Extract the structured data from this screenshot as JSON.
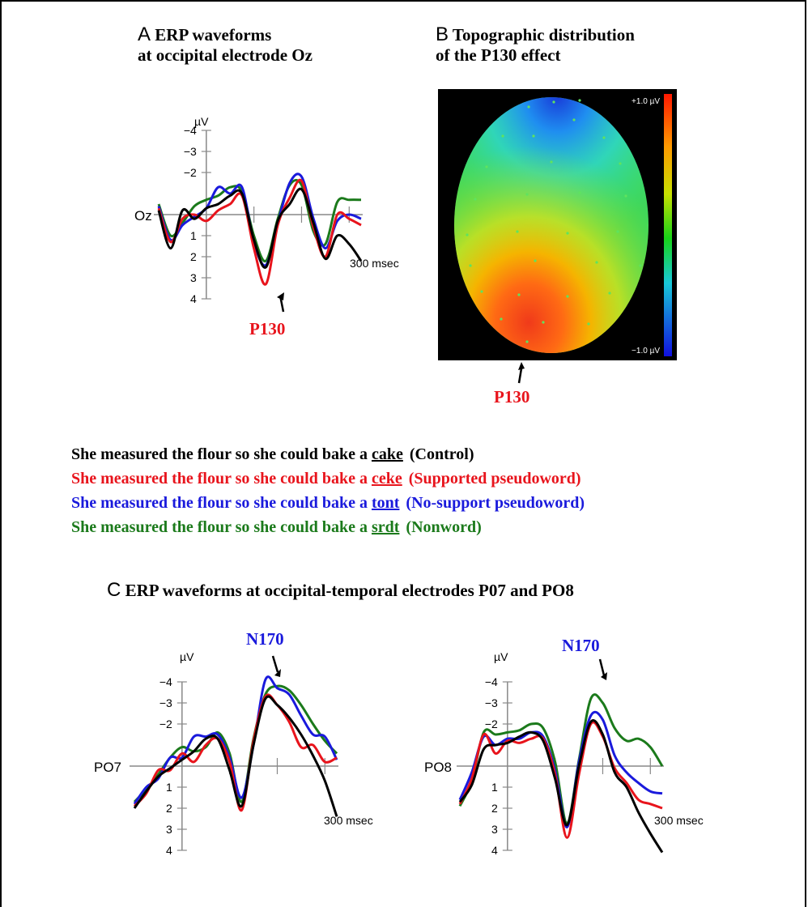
{
  "panel_a": {
    "letter": "A",
    "title_line1": "ERP waveforms",
    "title_line2": "at occipital electrode Oz",
    "electrode": "Oz",
    "unit": "µV",
    "y_ticks": [
      "−4",
      "−3",
      "−2",
      "1",
      "2",
      "3",
      "4"
    ],
    "time_label": "300 msec",
    "peak": "P130",
    "peak_color": "#e8141c"
  },
  "panel_b": {
    "letter": "B",
    "title_line1": "Topographic distribution",
    "title_line2": "of the P130 effect",
    "scale_max": "+1.0 µV",
    "scale_min": "−1.0 µV",
    "peak": "P130",
    "peak_color": "#e8141c"
  },
  "conditions": [
    {
      "prefix": "She measured the flour so she could bake a",
      "target": "cake",
      "label": "(Control)",
      "color": "#000000"
    },
    {
      "prefix": "She measured the flour so she could bake a",
      "target": "ceke",
      "label": "(Supported pseudoword)",
      "color": "#e8141c"
    },
    {
      "prefix": "She measured the flour so she could bake a",
      "target": "tont",
      "label": "(No-support pseudoword)",
      "color": "#1a1adc"
    },
    {
      "prefix": "She measured the flour so she could bake a",
      "target": "srdt",
      "label": "(Nonword)",
      "color": "#1b7a1b"
    }
  ],
  "panel_c": {
    "letter": "C",
    "title": "ERP waveforms at occipital-temporal electrodes P07 and PO8",
    "unit": "µV",
    "y_ticks": [
      "−4",
      "−3",
      "−2",
      "1",
      "2",
      "3",
      "4"
    ],
    "left_electrode": "PO7",
    "right_electrode": "PO8",
    "left_time_label": "300 msec",
    "right_time_label": "300 msec",
    "peak": "N170",
    "peak_color": "#1a1adc"
  },
  "colors": {
    "control": "#000000",
    "supported": "#e8141c",
    "nosupport": "#1a1adc",
    "nonword": "#1b7a1b"
  },
  "chart_data": [
    {
      "type": "line",
      "title": "",
      "xlabel": "",
      "ylabel": "µV",
      "ylim": [
        4,
        -4
      ],
      "x": [
        -100,
        -75,
        -50,
        -25,
        0,
        25,
        50,
        75,
        100,
        125,
        150,
        175,
        200,
        225,
        250,
        275,
        300,
        325
      ],
      "series": [
        {
          "name": "Control",
          "values": [
            -0.2,
            1.6,
            -0.2,
            0.2,
            -0.3,
            -0.5,
            -0.9,
            -1.0,
            1.2,
            2.5,
            0.3,
            -0.5,
            -1.2,
            0.4,
            2.1,
            1.0,
            1.4,
            2.2
          ]
        },
        {
          "name": "Supported pseudoword",
          "values": [
            -0.3,
            1.3,
            0.2,
            0.0,
            0.3,
            -0.2,
            -0.5,
            -0.9,
            1.6,
            3.3,
            0.5,
            -0.8,
            -1.6,
            0.6,
            2.0,
            0.0,
            0.2,
            0.5
          ]
        },
        {
          "name": "No-support pseudoword",
          "values": [
            -0.4,
            1.2,
            0.5,
            0.1,
            -0.3,
            -1.3,
            -1.0,
            -1.3,
            1.3,
            2.4,
            0.4,
            -1.5,
            -1.8,
            0.2,
            1.6,
            0.3,
            0.0,
            0.2
          ]
        },
        {
          "name": "Nonword",
          "values": [
            -0.5,
            1.0,
            0.4,
            -0.4,
            -0.7,
            -0.9,
            -1.3,
            -1.1,
            1.0,
            2.2,
            0.2,
            -1.4,
            -1.4,
            0.8,
            1.4,
            -0.6,
            -0.7,
            -0.7
          ]
        }
      ]
    },
    {
      "type": "line",
      "title": "",
      "xlabel": "",
      "ylabel": "µV",
      "ylim": [
        4,
        -4
      ],
      "x": [
        -100,
        -75,
        -50,
        -25,
        0,
        25,
        50,
        75,
        100,
        125,
        150,
        175,
        200,
        225,
        250,
        275,
        300,
        325
      ],
      "series": [
        {
          "name": "Control",
          "values": [
            2.0,
            1.2,
            0.5,
            0.1,
            -0.3,
            -0.7,
            -1.3,
            -1.3,
            0.2,
            1.9,
            -1.0,
            -3.2,
            -2.9,
            -2.3,
            -1.5,
            -0.5,
            0.7,
            2.4
          ]
        },
        {
          "name": "Supported pseudoword",
          "values": [
            1.9,
            1.3,
            0.2,
            0.2,
            -0.6,
            -0.2,
            -1.0,
            -1.3,
            -0.2,
            2.1,
            -1.2,
            -3.3,
            -2.9,
            -2.1,
            -0.9,
            -1.0,
            -0.2,
            -0.4
          ]
        },
        {
          "name": "No-support pseudoword",
          "values": [
            1.8,
            1.0,
            0.6,
            -0.4,
            -0.4,
            -1.4,
            -1.4,
            -1.5,
            -0.4,
            1.5,
            -1.0,
            -4.1,
            -3.7,
            -3.4,
            -2.4,
            -1.5,
            -1.4,
            -0.3
          ]
        },
        {
          "name": "Nonword",
          "values": [
            1.7,
            1.1,
            0.4,
            -0.4,
            -0.9,
            -0.7,
            -0.9,
            -1.6,
            -0.6,
            1.7,
            -1.3,
            -3.4,
            -3.8,
            -3.6,
            -2.9,
            -2.0,
            -1.2,
            -0.6
          ]
        }
      ]
    },
    {
      "type": "line",
      "title": "",
      "xlabel": "",
      "ylabel": "µV",
      "ylim": [
        4,
        -4
      ],
      "x": [
        -100,
        -75,
        -50,
        -25,
        0,
        25,
        50,
        75,
        100,
        125,
        150,
        175,
        200,
        225,
        250,
        275,
        300,
        325
      ],
      "series": [
        {
          "name": "Control",
          "values": [
            1.7,
            0.9,
            -0.8,
            -1.0,
            -1.1,
            -1.4,
            -1.6,
            -1.2,
            0.6,
            2.8,
            0.0,
            -2.1,
            -1.5,
            0.3,
            1.0,
            2.2,
            3.2,
            4.1
          ]
        },
        {
          "name": "Supported pseudoword",
          "values": [
            1.8,
            0.6,
            -1.5,
            -0.6,
            -1.2,
            -1.1,
            -1.3,
            -1.3,
            0.4,
            3.4,
            0.4,
            -2.0,
            -1.4,
            0.1,
            0.8,
            1.6,
            1.8,
            2.0
          ]
        },
        {
          "name": "No-support pseudoword",
          "values": [
            1.6,
            0.3,
            -1.4,
            -1.0,
            -1.3,
            -1.3,
            -1.6,
            -1.4,
            0.2,
            2.9,
            -0.2,
            -2.4,
            -2.2,
            -0.5,
            0.3,
            0.8,
            1.2,
            1.3
          ]
        },
        {
          "name": "Nonword",
          "values": [
            1.9,
            0.7,
            -1.6,
            -1.5,
            -1.6,
            -1.7,
            -2.0,
            -1.8,
            -0.2,
            2.7,
            -0.3,
            -3.2,
            -3.0,
            -1.8,
            -1.2,
            -1.3,
            -0.9,
            0.0
          ]
        }
      ]
    }
  ]
}
